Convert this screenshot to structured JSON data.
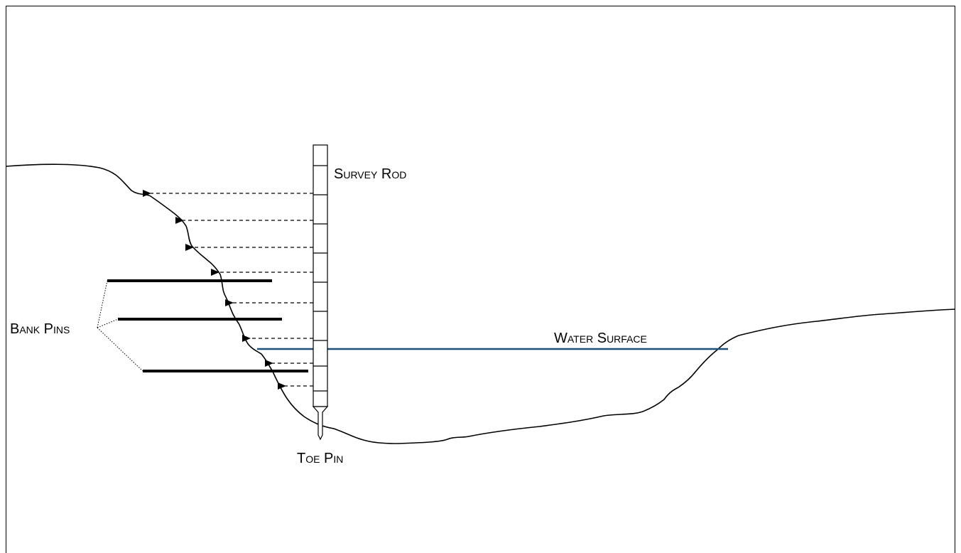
{
  "labels": {
    "survey_rod": "Survey Rod",
    "bank_pins": "Bank Pins",
    "water_surface": "Water Surface",
    "toe_pin": "Toe Pin"
  },
  "colors": {
    "water_line": "#1f4e79",
    "ink": "#000000"
  },
  "icons": {
    "arrowhead": "triangle-arrowhead-icon"
  }
}
